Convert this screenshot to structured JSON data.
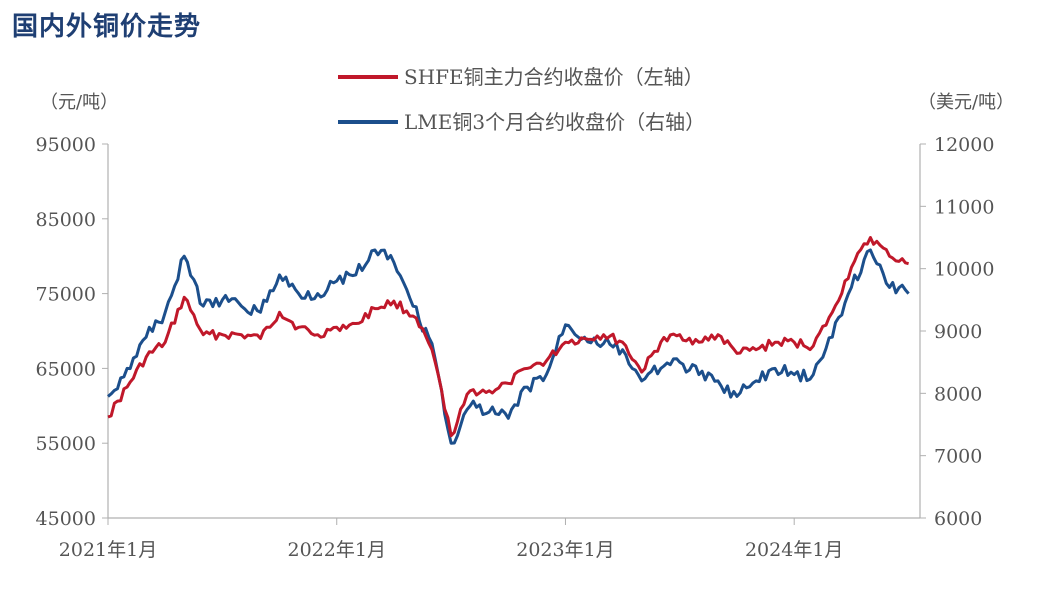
{
  "page": {
    "title": "国内外铜价走势"
  },
  "chart_data": {
    "type": "line",
    "title": "国内外铜价走势",
    "x_axis": {
      "ticks": [
        "2021年1月",
        "2022年1月",
        "2023年1月",
        "2024年1月"
      ],
      "range": [
        "2021-01",
        "2024-07"
      ]
    },
    "y_left": {
      "unit": "（元/吨）",
      "min": 45000,
      "max": 95000,
      "ticks": [
        45000,
        55000,
        65000,
        75000,
        85000,
        95000
      ]
    },
    "y_right": {
      "unit": "（美元/吨）",
      "min": 6000,
      "max": 12000,
      "ticks": [
        6000,
        7000,
        8000,
        9000,
        10000,
        11000,
        12000
      ]
    },
    "legend_position": "top-center",
    "series": [
      {
        "name": "SHFE铜主力合约收盘价（左轴）",
        "axis": "left",
        "color": "#c0182a",
        "points": [
          [
            "2021-01",
            58500
          ],
          [
            "2021-02",
            62500
          ],
          [
            "2021-03",
            66500
          ],
          [
            "2021-04",
            68500
          ],
          [
            "2021-05",
            74500
          ],
          [
            "2021-06",
            69500
          ],
          [
            "2021-07",
            69500
          ],
          [
            "2021-08",
            69500
          ],
          [
            "2021-09",
            69000
          ],
          [
            "2021-10",
            72500
          ],
          [
            "2021-11",
            70500
          ],
          [
            "2021-12",
            69500
          ],
          [
            "2022-01",
            70500
          ],
          [
            "2022-02",
            71000
          ],
          [
            "2022-03",
            73000
          ],
          [
            "2022-04",
            74000
          ],
          [
            "2022-05",
            72000
          ],
          [
            "2022-06",
            67500
          ],
          [
            "2022-07",
            56000
          ],
          [
            "2022-08",
            62000
          ],
          [
            "2022-09",
            62000
          ],
          [
            "2022-10",
            63000
          ],
          [
            "2022-11",
            65000
          ],
          [
            "2022-12",
            66000
          ],
          [
            "2023-01",
            68500
          ],
          [
            "2023-02",
            69000
          ],
          [
            "2023-03",
            69500
          ],
          [
            "2023-04",
            68500
          ],
          [
            "2023-05",
            64500
          ],
          [
            "2023-06",
            68500
          ],
          [
            "2023-07",
            69500
          ],
          [
            "2023-08",
            68500
          ],
          [
            "2023-09",
            69500
          ],
          [
            "2023-10",
            67000
          ],
          [
            "2023-11",
            67500
          ],
          [
            "2023-12",
            68500
          ],
          [
            "2024-01",
            68500
          ],
          [
            "2024-02",
            68000
          ],
          [
            "2024-03",
            72500
          ],
          [
            "2024-04",
            78500
          ],
          [
            "2024-05",
            82500
          ],
          [
            "2024-06",
            80000
          ],
          [
            "2024-07",
            79000
          ]
        ]
      },
      {
        "name": "LME铜3个月合约收盘价（右轴）",
        "axis": "right",
        "color": "#1c4f8c",
        "points": [
          [
            "2021-01",
            7950
          ],
          [
            "2021-02",
            8400
          ],
          [
            "2021-03",
            8900
          ],
          [
            "2021-04",
            9300
          ],
          [
            "2021-05",
            10200
          ],
          [
            "2021-06",
            9400
          ],
          [
            "2021-07",
            9500
          ],
          [
            "2021-08",
            9400
          ],
          [
            "2021-09",
            9300
          ],
          [
            "2021-10",
            9900
          ],
          [
            "2021-11",
            9600
          ],
          [
            "2021-12",
            9600
          ],
          [
            "2022-01",
            9800
          ],
          [
            "2022-02",
            9900
          ],
          [
            "2022-03",
            10300
          ],
          [
            "2022-04",
            10100
          ],
          [
            "2022-05",
            9400
          ],
          [
            "2022-06",
            8800
          ],
          [
            "2022-07",
            7200
          ],
          [
            "2022-08",
            7800
          ],
          [
            "2022-09",
            7700
          ],
          [
            "2022-10",
            7600
          ],
          [
            "2022-11",
            8100
          ],
          [
            "2022-12",
            8300
          ],
          [
            "2023-01",
            9100
          ],
          [
            "2023-02",
            8900
          ],
          [
            "2023-03",
            8800
          ],
          [
            "2023-04",
            8700
          ],
          [
            "2023-05",
            8200
          ],
          [
            "2023-06",
            8400
          ],
          [
            "2023-07",
            8500
          ],
          [
            "2023-08",
            8300
          ],
          [
            "2023-09",
            8200
          ],
          [
            "2023-10",
            7950
          ],
          [
            "2023-11",
            8200
          ],
          [
            "2023-12",
            8400
          ],
          [
            "2024-01",
            8300
          ],
          [
            "2024-02",
            8300
          ],
          [
            "2024-03",
            8900
          ],
          [
            "2024-04",
            9700
          ],
          [
            "2024-05",
            10300
          ],
          [
            "2024-06",
            9700
          ],
          [
            "2024-07",
            9600
          ]
        ]
      }
    ]
  }
}
